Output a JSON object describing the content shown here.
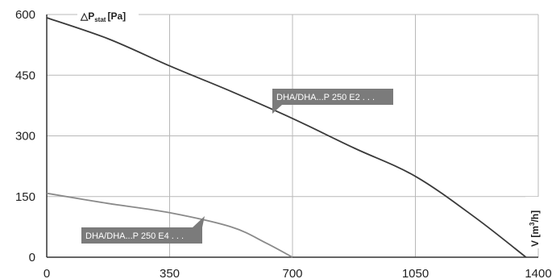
{
  "chart_data": {
    "type": "line",
    "ylabel": {
      "prefix": "△P",
      "sub": "stat",
      "unit": "[Pa]"
    },
    "xlabel": {
      "prefix": "V ",
      "unit_open": "[m",
      "sup": "3",
      "unit_close": "/h]"
    },
    "xlim": [
      0,
      1400
    ],
    "ylim": [
      0,
      600
    ],
    "x_ticks": [
      "0",
      "350",
      "700",
      "1050",
      "1400"
    ],
    "y_ticks": [
      "0",
      "150",
      "300",
      "450",
      "600"
    ],
    "grid": true,
    "series": [
      {
        "name": "DHA/DHA...P 250 E2 . . .",
        "color": "#3a3a3a",
        "x": [
          0,
          175,
          350,
          525,
          700,
          875,
          1050,
          1225,
          1365
        ],
        "y": [
          592,
          540,
          473,
          410,
          343,
          270,
          200,
          95,
          0
        ]
      },
      {
        "name": "DHA/DHA...P 250 E4 . . .",
        "color": "#8a8a8a",
        "x": [
          0,
          175,
          350,
          525,
          625,
          700
        ],
        "y": [
          158,
          133,
          110,
          75,
          35,
          0
        ]
      }
    ],
    "label_color": "#7b7b7b"
  }
}
